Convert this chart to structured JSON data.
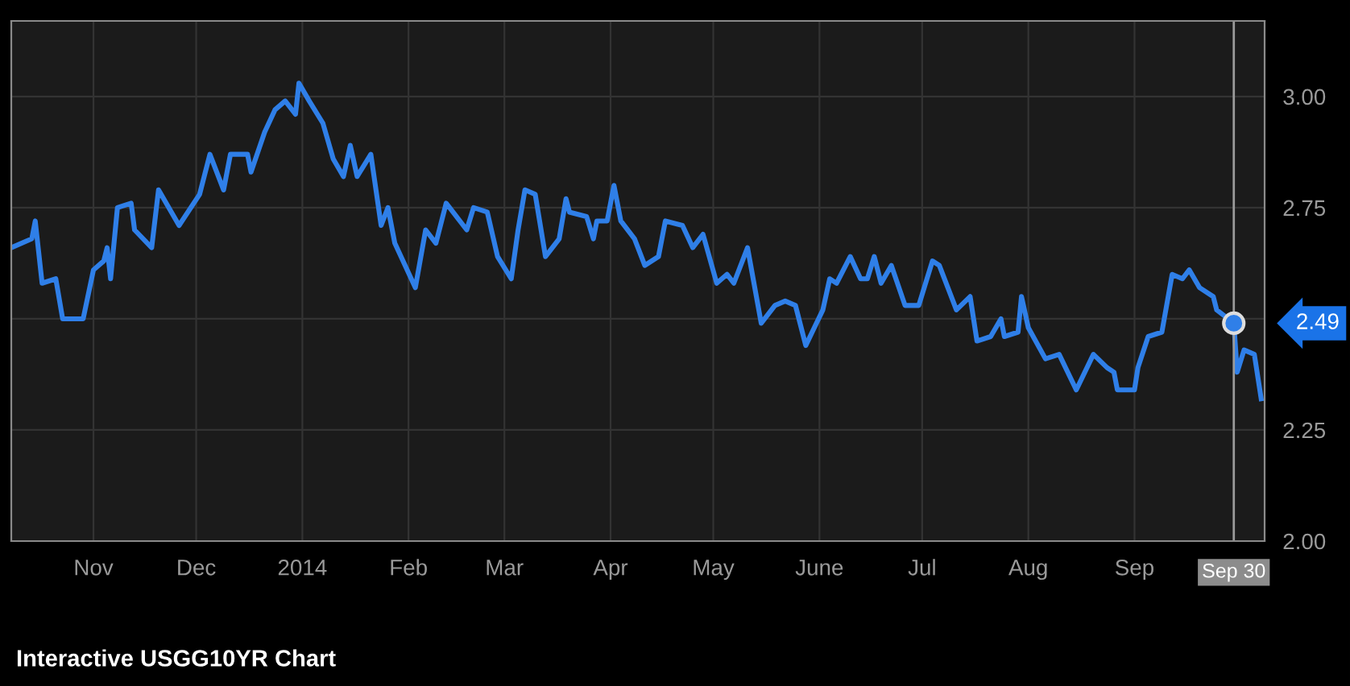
{
  "chart_data": {
    "type": "line",
    "title": "Interactive USGG10YR Chart",
    "x": [
      "2013-10-08",
      "2013-10-14",
      "2013-10-15",
      "2013-10-17",
      "2013-10-21",
      "2013-10-23",
      "2013-10-29",
      "2013-11-01",
      "2013-11-04",
      "2013-11-05",
      "2013-11-06",
      "2013-11-08",
      "2013-11-12",
      "2013-11-13",
      "2013-11-18",
      "2013-11-20",
      "2013-11-26",
      "2013-12-02",
      "2013-12-05",
      "2013-12-09",
      "2013-12-11",
      "2013-12-16",
      "2013-12-17",
      "2013-12-21",
      "2013-12-24",
      "2013-12-27",
      "2013-12-30",
      "2013-12-31",
      "2014-01-03",
      "2014-01-07",
      "2014-01-10",
      "2014-01-13",
      "2014-01-15",
      "2014-01-17",
      "2014-01-21",
      "2014-01-24",
      "2014-01-26",
      "2014-01-28",
      "2014-02-03",
      "2014-02-06",
      "2014-02-09",
      "2014-02-12",
      "2014-02-14",
      "2014-02-18",
      "2014-02-20",
      "2014-02-24",
      "2014-02-27",
      "2014-03-03",
      "2014-03-05",
      "2014-03-07",
      "2014-03-10",
      "2014-03-13",
      "2014-03-17",
      "2014-03-19",
      "2014-03-20",
      "2014-03-25",
      "2014-03-27",
      "2014-03-28",
      "2014-03-31",
      "2014-04-02",
      "2014-04-04",
      "2014-04-08",
      "2014-04-11",
      "2014-04-15",
      "2014-04-17",
      "2014-04-22",
      "2014-04-25",
      "2014-04-28",
      "2014-05-02",
      "2014-05-05",
      "2014-05-07",
      "2014-05-11",
      "2014-05-15",
      "2014-05-19",
      "2014-05-22",
      "2014-05-25",
      "2014-05-28",
      "2014-06-02",
      "2014-06-04",
      "2014-06-06",
      "2014-06-10",
      "2014-06-13",
      "2014-06-15",
      "2014-06-17",
      "2014-06-19",
      "2014-06-22",
      "2014-06-26",
      "2014-06-30",
      "2014-07-04",
      "2014-07-06",
      "2014-07-11",
      "2014-07-15",
      "2014-07-17",
      "2014-07-21",
      "2014-07-24",
      "2014-07-25",
      "2014-07-29",
      "2014-07-30",
      "2014-08-01",
      "2014-08-06",
      "2014-08-10",
      "2014-08-15",
      "2014-08-20",
      "2014-08-24",
      "2014-08-26",
      "2014-08-27",
      "2014-09-01",
      "2014-09-02",
      "2014-09-05",
      "2014-09-09",
      "2014-09-12",
      "2014-09-15",
      "2014-09-17",
      "2014-09-20",
      "2014-09-24",
      "2014-09-25",
      "2014-09-30",
      "2014-10-01",
      "2014-10-03",
      "2014-10-06",
      "2014-10-08"
    ],
    "series": [
      {
        "color": "#2f7fe8",
        "values": [
          2.66,
          2.68,
          2.72,
          2.58,
          2.59,
          2.5,
          2.5,
          2.61,
          2.63,
          2.66,
          2.59,
          2.75,
          2.76,
          2.7,
          2.66,
          2.79,
          2.71,
          2.78,
          2.87,
          2.79,
          2.87,
          2.87,
          2.83,
          2.92,
          2.97,
          2.99,
          2.96,
          3.03,
          2.99,
          2.94,
          2.86,
          2.82,
          2.89,
          2.82,
          2.87,
          2.71,
          2.75,
          2.67,
          2.57,
          2.7,
          2.67,
          2.76,
          2.74,
          2.7,
          2.75,
          2.74,
          2.64,
          2.59,
          2.7,
          2.79,
          2.78,
          2.64,
          2.68,
          2.77,
          2.74,
          2.73,
          2.68,
          2.72,
          2.72,
          2.8,
          2.72,
          2.68,
          2.62,
          2.64,
          2.72,
          2.71,
          2.66,
          2.69,
          2.58,
          2.6,
          2.58,
          2.66,
          2.49,
          2.53,
          2.54,
          2.53,
          2.44,
          2.52,
          2.59,
          2.58,
          2.64,
          2.59,
          2.59,
          2.64,
          2.58,
          2.62,
          2.53,
          2.53,
          2.63,
          2.62,
          2.52,
          2.55,
          2.45,
          2.46,
          2.5,
          2.46,
          2.47,
          2.55,
          2.48,
          2.41,
          2.42,
          2.34,
          2.42,
          2.39,
          2.38,
          2.34,
          2.34,
          2.39,
          2.46,
          2.47,
          2.6,
          2.59,
          2.61,
          2.57,
          2.55,
          2.52,
          2.49,
          2.38,
          2.43,
          2.42,
          2.32
        ]
      }
    ],
    "xlim": [
      "2013-10-08",
      "2014-10-09"
    ],
    "xticks": [
      {
        "value": "2013-11-01",
        "label": "Nov"
      },
      {
        "value": "2013-12-01",
        "label": "Dec"
      },
      {
        "value": "2014-01-01",
        "label": "2014"
      },
      {
        "value": "2014-02-01",
        "label": "Feb"
      },
      {
        "value": "2014-03-01",
        "label": "Mar"
      },
      {
        "value": "2014-04-01",
        "label": "Apr"
      },
      {
        "value": "2014-05-01",
        "label": "May"
      },
      {
        "value": "2014-06-01",
        "label": "June"
      },
      {
        "value": "2014-07-01",
        "label": "Jul"
      },
      {
        "value": "2014-08-01",
        "label": "Aug"
      },
      {
        "value": "2014-09-01",
        "label": "Sep"
      }
    ],
    "ylim": [
      2.0,
      3.17
    ],
    "yticks": [
      {
        "value": 2.0,
        "label": "2.00"
      },
      {
        "value": 2.25,
        "label": "2.25"
      },
      {
        "value": 2.5,
        "label": null
      },
      {
        "value": 2.75,
        "label": "2.75"
      },
      {
        "value": 3.0,
        "label": "3.00"
      }
    ],
    "ref_lines": [
      {
        "axis": "x",
        "value": "2014-09-30",
        "label": "Sep 30",
        "color": "#9a9a9a"
      }
    ],
    "annotations": [
      {
        "text": "2.49",
        "x": "2014-09-30",
        "y": 2.49
      }
    ],
    "grid": true,
    "legend": false,
    "marker": "none",
    "line_style": "solid"
  }
}
